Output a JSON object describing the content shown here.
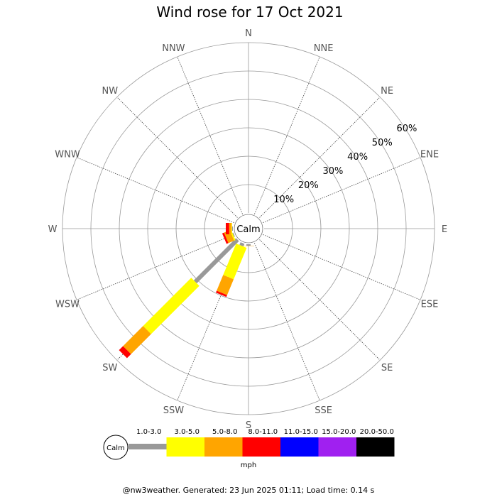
{
  "chart_data": {
    "type": "wind-rose",
    "title": "Wind rose for 17 Oct 2021",
    "directions": [
      "N",
      "NNE",
      "NE",
      "ENE",
      "E",
      "ESE",
      "SE",
      "SSE",
      "S",
      "SSW",
      "SW",
      "WSW",
      "W",
      "WNW",
      "NW",
      "NNW"
    ],
    "radial_ticks": [
      "10%",
      "20%",
      "30%",
      "40%",
      "50%",
      "60%"
    ],
    "rmax": 60,
    "calm_label": "Calm",
    "bins": [
      {
        "label": "1.0-3.0",
        "color": "#999999"
      },
      {
        "label": "3.0-5.0",
        "color": "#ffff00"
      },
      {
        "label": "5.0-8.0",
        "color": "#ffa500"
      },
      {
        "label": "8.0-11.0",
        "color": "#ff0000"
      },
      {
        "label": "11.0-15.0",
        "color": "#0000ff"
      },
      {
        "label": "15.0-20.0",
        "color": "#a020f0"
      },
      {
        "label": "20.0-50.0",
        "color": "#000000"
      }
    ],
    "unit": "mph",
    "series": [
      {
        "direction": "SSW",
        "cumulative": [
          1,
          13,
          19,
          19.7,
          19.7,
          19.7,
          19.7
        ]
      },
      {
        "direction": "SW",
        "cumulative": [
          21,
          45,
          55,
          57,
          57,
          57,
          57
        ]
      },
      {
        "direction": "WSW",
        "cumulative": [
          0.3,
          0.8,
          3,
          3.7,
          3.7,
          3.7,
          3.7
        ]
      },
      {
        "direction": "W",
        "cumulative": [
          0.3,
          0.5,
          1.3,
          2.5,
          2.5,
          2.5,
          2.5
        ]
      },
      {
        "direction": "S",
        "cumulative": [
          0.5,
          0.5,
          0.6,
          0.6,
          0.6,
          0.6,
          0.6
        ]
      }
    ]
  },
  "footer": "@nw3weather. Generated: 23 Jun 2025 01:11; Load time: 0.14 s"
}
